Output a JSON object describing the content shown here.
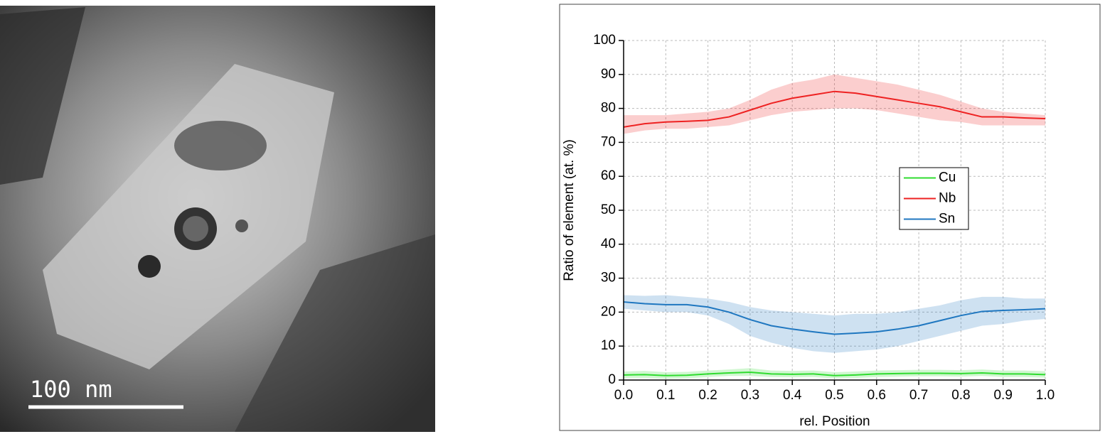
{
  "scale_bar": "100 nm",
  "chart_data": {
    "type": "line",
    "xlabel": "rel. Position",
    "ylabel": "Ratio of element (at. %)",
    "x": [
      0,
      0.05,
      0.1,
      0.15,
      0.2,
      0.25,
      0.3,
      0.35,
      0.4,
      0.45,
      0.5,
      0.55,
      0.6,
      0.65,
      0.7,
      0.75,
      0.8,
      0.85,
      0.9,
      0.95,
      1
    ],
    "xlim": [
      0,
      1
    ],
    "xticks": [
      {
        "value": 0,
        "label": "0.0"
      },
      0.1,
      0.2,
      0.3,
      0.4,
      0.5,
      0.6,
      0.7,
      0.8,
      0.9,
      {
        "value": 1,
        "label": "1.0"
      }
    ],
    "ylim": [
      0,
      100
    ],
    "yticks": [
      0,
      10,
      20,
      30,
      40,
      50,
      60,
      70,
      80,
      90,
      100
    ],
    "grid": true,
    "series": [
      {
        "name": "Cu",
        "color": "#2fdc2f",
        "values": [
          1.5,
          1.6,
          1.3,
          1.4,
          1.8,
          2.1,
          2.3,
          1.8,
          1.7,
          1.8,
          1.3,
          1.5,
          1.8,
          1.9,
          2,
          2,
          1.9,
          2.1,
          1.8,
          1.8,
          1.6
        ],
        "upper": [
          2.5,
          2.7,
          2.3,
          2.4,
          2.8,
          3.1,
          3.5,
          2.8,
          2.7,
          2.8,
          2.3,
          2.5,
          2.8,
          2.9,
          3,
          3,
          2.9,
          3.1,
          2.8,
          2.8,
          2.6
        ],
        "lower": [
          0.6,
          0.6,
          0.4,
          0.5,
          0.9,
          1.2,
          1.2,
          0.9,
          0.8,
          0.9,
          0.5,
          0.6,
          0.9,
          1,
          1.1,
          1.1,
          1,
          1.2,
          0.9,
          0.9,
          0.7
        ]
      },
      {
        "name": "Nb",
        "color": "#ee2222",
        "values": [
          74.5,
          75.5,
          76,
          76.2,
          76.5,
          77.5,
          79.5,
          81.5,
          83,
          84,
          85,
          84.5,
          83.5,
          82.5,
          81.5,
          80.5,
          79,
          77.5,
          77.5,
          77.2,
          77
        ],
        "upper": [
          78,
          78,
          78,
          78.5,
          79,
          80,
          82.5,
          85.5,
          87.5,
          88.5,
          90,
          89,
          88,
          87,
          85.5,
          84,
          82,
          80,
          79,
          78.5,
          78
        ],
        "lower": [
          72.5,
          73.5,
          74,
          74,
          74.5,
          75,
          76.5,
          78,
          79,
          79.5,
          80,
          80,
          79.5,
          78.5,
          77.5,
          76.5,
          76,
          75,
          75,
          75,
          75
        ]
      },
      {
        "name": "Sn",
        "color": "#1f77c0",
        "values": [
          23,
          22.5,
          22.2,
          22.2,
          21.5,
          20,
          17.8,
          16,
          15,
          14.2,
          13.5,
          13.8,
          14.2,
          15,
          16,
          17.5,
          19,
          20.2,
          20.5,
          20.7,
          21
        ],
        "upper": [
          25,
          24.8,
          25,
          24.5,
          24,
          23,
          21.5,
          20.5,
          20,
          19.5,
          19,
          19.5,
          19.5,
          20,
          21,
          22,
          23.5,
          24.5,
          24.5,
          24,
          24
        ],
        "lower": [
          21,
          20.5,
          20,
          20,
          19,
          16.5,
          13,
          11,
          9.5,
          8.5,
          8,
          8.5,
          9,
          10,
          11.5,
          13,
          14.5,
          16,
          16.5,
          17.5,
          18
        ]
      }
    ]
  }
}
